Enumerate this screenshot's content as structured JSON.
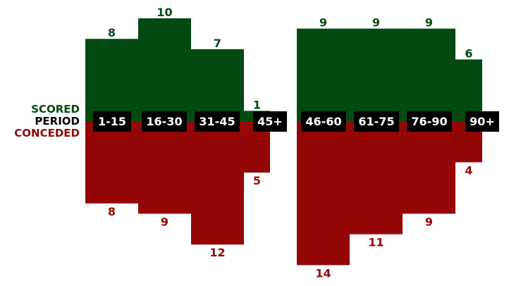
{
  "labels": {
    "scored": "SCORED",
    "period": "PERIOD",
    "conceded": "CONCEDED"
  },
  "colors": {
    "scored": "#034a12",
    "conceded": "#950707",
    "period_box": "#000000",
    "period_text": "#ffffff"
  },
  "chart_data": {
    "type": "bar",
    "categories": [
      "1-15",
      "16-30",
      "31-45",
      "45+",
      "46-60",
      "61-75",
      "76-90",
      "90+"
    ],
    "series": [
      {
        "name": "SCORED",
        "values": [
          8,
          10,
          7,
          1,
          9,
          9,
          9,
          6
        ]
      },
      {
        "name": "CONCEDED",
        "values": [
          8,
          9,
          12,
          5,
          14,
          11,
          9,
          4
        ]
      }
    ],
    "title": "",
    "xlabel": "PERIOD",
    "ylabel": ""
  }
}
